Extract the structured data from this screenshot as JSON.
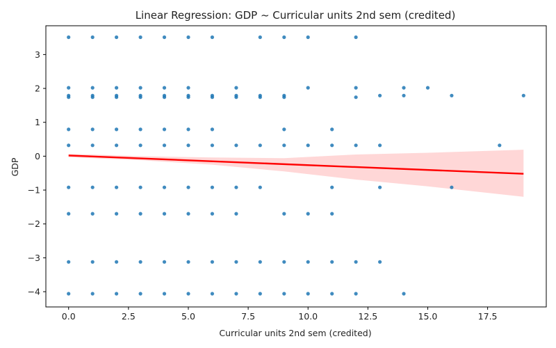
{
  "chart_data": {
    "type": "scatter",
    "title": "Linear Regression: GDP ~ Curricular units 2nd sem (credited)",
    "xlabel": "Curricular units 2nd sem (credited)",
    "ylabel": "GDP",
    "xlim": [
      -0.95,
      19.95
    ],
    "ylim": [
      -4.45,
      3.85
    ],
    "xticks": [
      0.0,
      2.5,
      5.0,
      7.5,
      10.0,
      12.5,
      15.0,
      17.5
    ],
    "xtick_labels": [
      "0.0",
      "2.5",
      "5.0",
      "7.5",
      "10.0",
      "12.5",
      "15.0",
      "17.5"
    ],
    "yticks": [
      -4,
      -3,
      -2,
      -1,
      0,
      1,
      2,
      3
    ],
    "ytick_labels": [
      "−4",
      "−3",
      "−2",
      "−1",
      "0",
      "1",
      "2",
      "3"
    ],
    "grid": false,
    "legend": "none",
    "colors": {
      "points": "#1f77b4",
      "line": "#ff0000",
      "band": "#ff9a9a"
    },
    "points": [
      {
        "x": 0,
        "y": 3.51
      },
      {
        "x": 1,
        "y": 3.51
      },
      {
        "x": 2,
        "y": 3.51
      },
      {
        "x": 3,
        "y": 3.51
      },
      {
        "x": 4,
        "y": 3.51
      },
      {
        "x": 5,
        "y": 3.51
      },
      {
        "x": 6,
        "y": 3.51
      },
      {
        "x": 8,
        "y": 3.51
      },
      {
        "x": 9,
        "y": 3.51
      },
      {
        "x": 10,
        "y": 3.51
      },
      {
        "x": 12,
        "y": 3.51
      },
      {
        "x": 0,
        "y": 2.02
      },
      {
        "x": 1,
        "y": 2.02
      },
      {
        "x": 2,
        "y": 2.02
      },
      {
        "x": 3,
        "y": 2.02
      },
      {
        "x": 4,
        "y": 2.02
      },
      {
        "x": 5,
        "y": 2.02
      },
      {
        "x": 7,
        "y": 2.02
      },
      {
        "x": 10,
        "y": 2.02
      },
      {
        "x": 12,
        "y": 2.02
      },
      {
        "x": 14,
        "y": 2.02
      },
      {
        "x": 15,
        "y": 2.02
      },
      {
        "x": 0,
        "y": 1.79
      },
      {
        "x": 1,
        "y": 1.79
      },
      {
        "x": 2,
        "y": 1.79
      },
      {
        "x": 3,
        "y": 1.79
      },
      {
        "x": 4,
        "y": 1.79
      },
      {
        "x": 5,
        "y": 1.79
      },
      {
        "x": 6,
        "y": 1.79
      },
      {
        "x": 7,
        "y": 1.79
      },
      {
        "x": 8,
        "y": 1.79
      },
      {
        "x": 9,
        "y": 1.79
      },
      {
        "x": 13,
        "y": 1.79
      },
      {
        "x": 14,
        "y": 1.79
      },
      {
        "x": 16,
        "y": 1.79
      },
      {
        "x": 19,
        "y": 1.79
      },
      {
        "x": 0,
        "y": 1.74
      },
      {
        "x": 1,
        "y": 1.74
      },
      {
        "x": 2,
        "y": 1.74
      },
      {
        "x": 3,
        "y": 1.74
      },
      {
        "x": 4,
        "y": 1.74
      },
      {
        "x": 5,
        "y": 1.74
      },
      {
        "x": 6,
        "y": 1.74
      },
      {
        "x": 7,
        "y": 1.74
      },
      {
        "x": 8,
        "y": 1.74
      },
      {
        "x": 9,
        "y": 1.74
      },
      {
        "x": 12,
        "y": 1.74
      },
      {
        "x": 0,
        "y": 0.79
      },
      {
        "x": 1,
        "y": 0.79
      },
      {
        "x": 2,
        "y": 0.79
      },
      {
        "x": 3,
        "y": 0.79
      },
      {
        "x": 4,
        "y": 0.79
      },
      {
        "x": 5,
        "y": 0.79
      },
      {
        "x": 6,
        "y": 0.79
      },
      {
        "x": 9,
        "y": 0.79
      },
      {
        "x": 11,
        "y": 0.79
      },
      {
        "x": 0,
        "y": 0.32
      },
      {
        "x": 1,
        "y": 0.32
      },
      {
        "x": 2,
        "y": 0.32
      },
      {
        "x": 3,
        "y": 0.32
      },
      {
        "x": 4,
        "y": 0.32
      },
      {
        "x": 5,
        "y": 0.32
      },
      {
        "x": 6,
        "y": 0.32
      },
      {
        "x": 7,
        "y": 0.32
      },
      {
        "x": 8,
        "y": 0.32
      },
      {
        "x": 9,
        "y": 0.32
      },
      {
        "x": 10,
        "y": 0.32
      },
      {
        "x": 11,
        "y": 0.32
      },
      {
        "x": 12,
        "y": 0.32
      },
      {
        "x": 13,
        "y": 0.32
      },
      {
        "x": 18,
        "y": 0.32
      },
      {
        "x": 0,
        "y": -0.92
      },
      {
        "x": 1,
        "y": -0.92
      },
      {
        "x": 2,
        "y": -0.92
      },
      {
        "x": 3,
        "y": -0.92
      },
      {
        "x": 4,
        "y": -0.92
      },
      {
        "x": 5,
        "y": -0.92
      },
      {
        "x": 6,
        "y": -0.92
      },
      {
        "x": 7,
        "y": -0.92
      },
      {
        "x": 8,
        "y": -0.92
      },
      {
        "x": 11,
        "y": -0.92
      },
      {
        "x": 13,
        "y": -0.92
      },
      {
        "x": 16,
        "y": -0.92
      },
      {
        "x": 0,
        "y": -1.7
      },
      {
        "x": 1,
        "y": -1.7
      },
      {
        "x": 2,
        "y": -1.7
      },
      {
        "x": 3,
        "y": -1.7
      },
      {
        "x": 4,
        "y": -1.7
      },
      {
        "x": 5,
        "y": -1.7
      },
      {
        "x": 6,
        "y": -1.7
      },
      {
        "x": 7,
        "y": -1.7
      },
      {
        "x": 9,
        "y": -1.7
      },
      {
        "x": 10,
        "y": -1.7
      },
      {
        "x": 11,
        "y": -1.7
      },
      {
        "x": 0,
        "y": -3.12
      },
      {
        "x": 1,
        "y": -3.12
      },
      {
        "x": 2,
        "y": -3.12
      },
      {
        "x": 3,
        "y": -3.12
      },
      {
        "x": 4,
        "y": -3.12
      },
      {
        "x": 5,
        "y": -3.12
      },
      {
        "x": 6,
        "y": -3.12
      },
      {
        "x": 7,
        "y": -3.12
      },
      {
        "x": 8,
        "y": -3.12
      },
      {
        "x": 9,
        "y": -3.12
      },
      {
        "x": 10,
        "y": -3.12
      },
      {
        "x": 11,
        "y": -3.12
      },
      {
        "x": 12,
        "y": -3.12
      },
      {
        "x": 13,
        "y": -3.12
      },
      {
        "x": 0,
        "y": -4.06
      },
      {
        "x": 1,
        "y": -4.06
      },
      {
        "x": 2,
        "y": -4.06
      },
      {
        "x": 3,
        "y": -4.06
      },
      {
        "x": 4,
        "y": -4.06
      },
      {
        "x": 5,
        "y": -4.06
      },
      {
        "x": 6,
        "y": -4.06
      },
      {
        "x": 7,
        "y": -4.06
      },
      {
        "x": 8,
        "y": -4.06
      },
      {
        "x": 9,
        "y": -4.06
      },
      {
        "x": 10,
        "y": -4.06
      },
      {
        "x": 11,
        "y": -4.06
      },
      {
        "x": 12,
        "y": -4.06
      },
      {
        "x": 14,
        "y": -4.06
      }
    ],
    "regression": {
      "x": [
        0,
        19
      ],
      "y": [
        0.02,
        -0.52
      ],
      "ci": [
        {
          "x": 0,
          "lower": -0.03,
          "upper": 0.07
        },
        {
          "x": 3,
          "lower": -0.12,
          "upper": 0.0
        },
        {
          "x": 6,
          "lower": -0.25,
          "upper": -0.04
        },
        {
          "x": 9,
          "lower": -0.45,
          "upper": -0.06
        },
        {
          "x": 12,
          "lower": -0.69,
          "upper": 0.05
        },
        {
          "x": 15,
          "lower": -0.89,
          "upper": 0.1
        },
        {
          "x": 19,
          "lower": -1.2,
          "upper": 0.19
        }
      ]
    }
  }
}
